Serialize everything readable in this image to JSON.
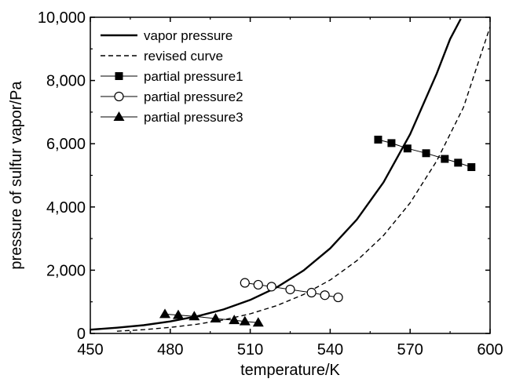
{
  "chart_data": {
    "type": "line",
    "xlabel": "temperature/K",
    "ylabel": "pressure of sulfur vapor/Pa",
    "xlim": [
      450,
      600
    ],
    "ylim": [
      0,
      10000
    ],
    "x_ticks": [
      450,
      480,
      510,
      540,
      570,
      600
    ],
    "x_tick_labels": [
      "450",
      "480",
      "510",
      "540",
      "570",
      "600"
    ],
    "y_ticks": [
      0,
      2000,
      4000,
      6000,
      8000,
      10000
    ],
    "y_tick_labels": [
      "0",
      "2,000",
      "4,000",
      "6,000",
      "8,000",
      "10,000"
    ],
    "legend_position": "top-left",
    "series": [
      {
        "name": "vapor pressure",
        "style": "solid-line",
        "color": "#000000",
        "x": [
          450,
          460,
          470,
          480,
          490,
          500,
          510,
          520,
          530,
          540,
          550,
          560,
          570,
          580,
          585,
          589
        ],
        "y": [
          120,
          180,
          260,
          380,
          540,
          760,
          1060,
          1460,
          1990,
          2690,
          3600,
          4780,
          6300,
          8220,
          9310,
          9950
        ]
      },
      {
        "name": "revised curve",
        "style": "dashed-line",
        "color": "#000000",
        "x": [
          460,
          470,
          480,
          490,
          500,
          510,
          520,
          530,
          540,
          550,
          560,
          570,
          580,
          590,
          600
        ],
        "y": [
          70,
          120,
          190,
          290,
          430,
          620,
          880,
          1230,
          1690,
          2300,
          3100,
          4130,
          5460,
          7150,
          9700
        ]
      },
      {
        "name": "partial pressure1",
        "style": "line-filled-square",
        "color": "#000000",
        "x": [
          558,
          563,
          569,
          576,
          583,
          588,
          593
        ],
        "y": [
          6130,
          6020,
          5850,
          5700,
          5520,
          5400,
          5260
        ]
      },
      {
        "name": "partial pressure2",
        "style": "line-open-circle",
        "color": "#000000",
        "x": [
          508,
          513,
          518,
          525,
          533,
          538,
          543
        ],
        "y": [
          1600,
          1540,
          1480,
          1390,
          1290,
          1210,
          1140
        ]
      },
      {
        "name": "partial pressure3",
        "style": "line-filled-triangle",
        "color": "#000000",
        "x": [
          478,
          483,
          489,
          497,
          504,
          508,
          513
        ],
        "y": [
          610,
          580,
          540,
          470,
          420,
          380,
          340
        ]
      }
    ]
  }
}
